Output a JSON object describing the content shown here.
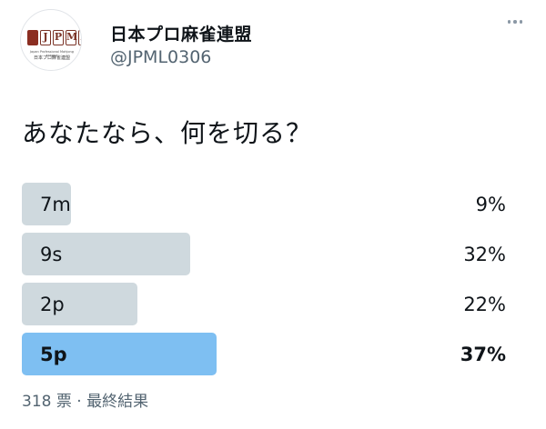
{
  "account": {
    "avatar_logo_text": "JPML",
    "avatar_logo_caption": "Japan Professional Mahjong League",
    "avatar_logo_jp": "日本プロ麻雀連盟",
    "display_name": "日本プロ麻雀連盟",
    "handle": "@JPML0306",
    "more_icon": "more-dots-icon"
  },
  "tweet": {
    "text": "あなたなら、何を切る？"
  },
  "poll": {
    "options": [
      {
        "label": "7m",
        "percent_text": "9%",
        "percent": 9,
        "winner": false
      },
      {
        "label": "9s",
        "percent_text": "32%",
        "percent": 32,
        "winner": false
      },
      {
        "label": "2p",
        "percent_text": "22%",
        "percent": 22,
        "winner": false
      },
      {
        "label": "5p",
        "percent_text": "37%",
        "percent": 37,
        "winner": true
      }
    ],
    "footer": "318 票 · 最終結果"
  },
  "colors": {
    "bar": "#cfd9de",
    "winner_bar": "#7ebff2",
    "secondary_text": "#536471"
  }
}
